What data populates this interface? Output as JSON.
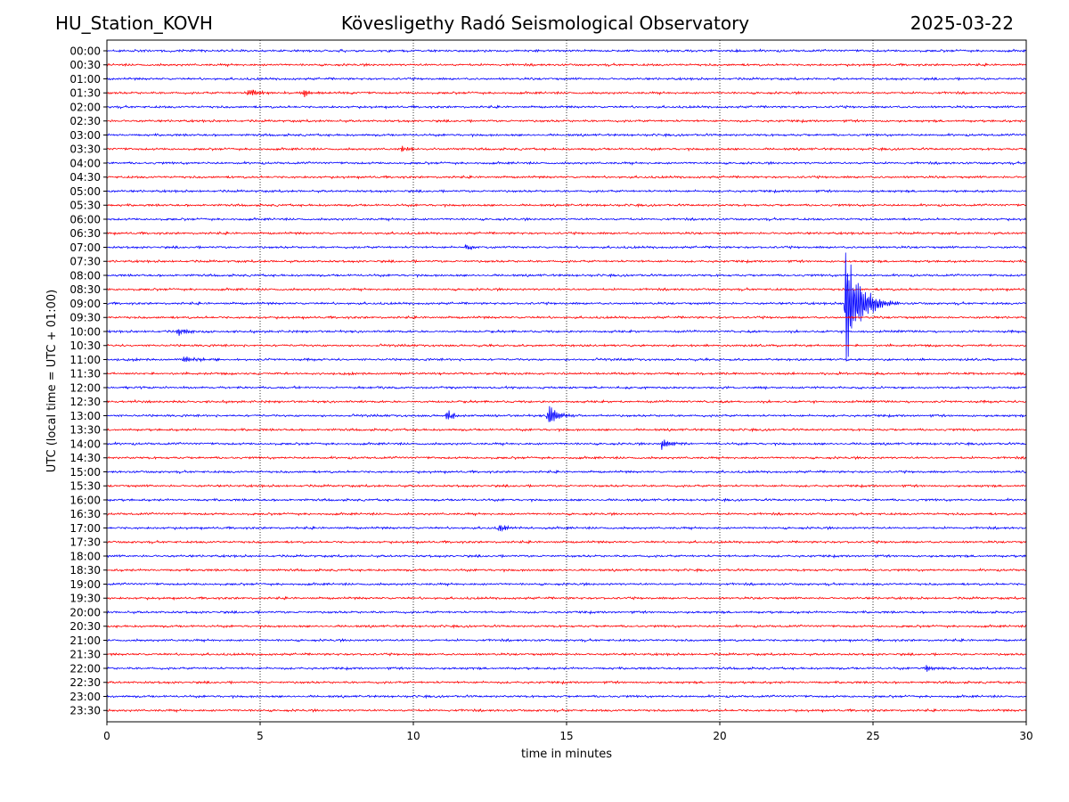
{
  "header": {
    "station": "HU_Station_KOVH",
    "observatory": "Kövesligethy Radó Seismological Observatory",
    "date": "2025-03-22"
  },
  "chart_data": {
    "type": "line",
    "title": "Kövesligethy Radó Seismological Observatory",
    "xlabel": "time in minutes",
    "ylabel": "UTC (local time = UTC + 01:00)",
    "xlim": [
      0,
      30
    ],
    "x_ticks": [
      0,
      5,
      10,
      15,
      20,
      25,
      30
    ],
    "vertical_gridlines": [
      5,
      10,
      15,
      20,
      25
    ],
    "grid_style": "dotted",
    "row_labels": [
      "00:00",
      "00:30",
      "01:00",
      "01:30",
      "02:00",
      "02:30",
      "03:00",
      "03:30",
      "04:00",
      "04:30",
      "05:00",
      "05:30",
      "06:00",
      "06:30",
      "07:00",
      "07:30",
      "08:00",
      "08:30",
      "09:00",
      "09:30",
      "10:00",
      "10:30",
      "11:00",
      "11:30",
      "12:00",
      "12:30",
      "13:00",
      "13:30",
      "14:00",
      "14:30",
      "15:00",
      "15:30",
      "16:00",
      "16:30",
      "17:00",
      "17:30",
      "18:00",
      "18:30",
      "19:00",
      "19:30",
      "20:00",
      "20:30",
      "21:00",
      "21:30",
      "22:00",
      "22:30",
      "23:00",
      "23:30"
    ],
    "row_colors": [
      "#0000ff",
      "#ff0000"
    ],
    "events": [
      {
        "row": "01:30",
        "minute": 4.6,
        "amplitude": 0.5
      },
      {
        "row": "01:30",
        "minute": 6.4,
        "amplitude": 0.4
      },
      {
        "row": "03:30",
        "minute": 9.6,
        "amplitude": 0.25
      },
      {
        "row": "07:00",
        "minute": 11.7,
        "amplitude": 0.35
      },
      {
        "row": "09:00",
        "minute": 24.1,
        "amplitude": 5.5
      },
      {
        "row": "10:00",
        "minute": 2.3,
        "amplitude": 0.45
      },
      {
        "row": "11:00",
        "minute": 2.5,
        "amplitude": 0.35
      },
      {
        "row": "13:00",
        "minute": 11.1,
        "amplitude": 0.6
      },
      {
        "row": "13:00",
        "minute": 14.4,
        "amplitude": 1.2
      },
      {
        "row": "14:00",
        "minute": 18.1,
        "amplitude": 0.6
      },
      {
        "row": "17:00",
        "minute": 12.8,
        "amplitude": 0.4
      },
      {
        "row": "22:00",
        "minute": 26.7,
        "amplitude": 0.4
      }
    ]
  }
}
